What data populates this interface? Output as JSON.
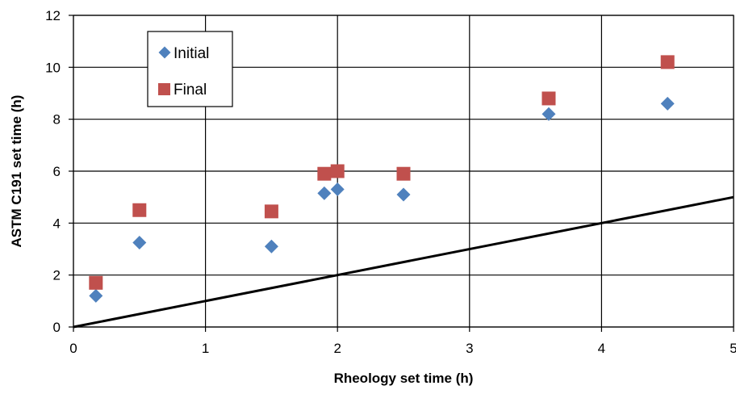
{
  "chart_data": {
    "type": "scatter",
    "title": "",
    "xlabel": "Rheology set time (h)",
    "ylabel": "ASTM C191 set time (h)",
    "xlim": [
      0,
      5
    ],
    "ylim": [
      0,
      12
    ],
    "x_ticks": [
      "0",
      "1",
      "2",
      "3",
      "4",
      "5"
    ],
    "y_ticks": [
      "0",
      "2",
      "4",
      "6",
      "8",
      "10",
      "12"
    ],
    "grid": true,
    "legend_position": "top-left",
    "series": [
      {
        "name": "Initial",
        "marker": "diamond",
        "color": "#4F81BD",
        "points": [
          {
            "x": 0.17,
            "y": 1.2
          },
          {
            "x": 0.5,
            "y": 3.25
          },
          {
            "x": 1.5,
            "y": 3.1
          },
          {
            "x": 1.9,
            "y": 5.15
          },
          {
            "x": 2.0,
            "y": 5.3
          },
          {
            "x": 2.5,
            "y": 5.1
          },
          {
            "x": 3.6,
            "y": 8.2
          },
          {
            "x": 4.5,
            "y": 8.6
          }
        ]
      },
      {
        "name": "Final",
        "marker": "square",
        "color": "#C0504D",
        "points": [
          {
            "x": 0.17,
            "y": 1.7
          },
          {
            "x": 0.5,
            "y": 4.5
          },
          {
            "x": 1.5,
            "y": 4.45
          },
          {
            "x": 1.9,
            "y": 5.9
          },
          {
            "x": 2.0,
            "y": 6.0
          },
          {
            "x": 2.5,
            "y": 5.9
          },
          {
            "x": 3.6,
            "y": 8.8
          },
          {
            "x": 4.5,
            "y": 10.2
          }
        ]
      }
    ],
    "reference_line": {
      "color": "#000000",
      "points": [
        {
          "x": 0,
          "y": 0
        },
        {
          "x": 5,
          "y": 5
        }
      ]
    }
  }
}
